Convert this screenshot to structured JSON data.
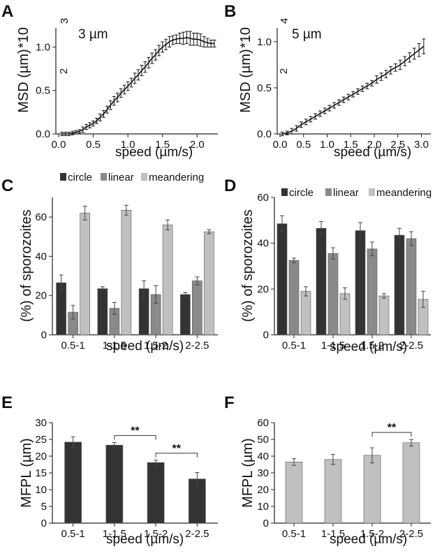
{
  "chart_data": [
    {
      "panel": "A",
      "type": "line",
      "annotation": "3 µm",
      "xlabel": "speed (µm/s)",
      "ylabel": "MSD (µm)",
      "ylabel_sup": "2",
      "ylabel_mult": "*10",
      "ylabel_exp": "3",
      "xlim": [
        0,
        2.3
      ],
      "ylim": [
        0,
        1.22
      ],
      "xticks": [
        "0.0",
        "0.5",
        "1.0",
        "1.5",
        "2.0"
      ],
      "yticks": [
        "0.0",
        "0.5",
        "1.0"
      ],
      "x": [
        0.05,
        0.1,
        0.15,
        0.2,
        0.25,
        0.3,
        0.35,
        0.4,
        0.45,
        0.5,
        0.55,
        0.6,
        0.65,
        0.7,
        0.75,
        0.8,
        0.85,
        0.9,
        0.95,
        1.0,
        1.05,
        1.1,
        1.15,
        1.2,
        1.25,
        1.3,
        1.35,
        1.4,
        1.45,
        1.5,
        1.55,
        1.6,
        1.65,
        1.7,
        1.75,
        1.8,
        1.85,
        1.9,
        1.95,
        2.0,
        2.05,
        2.1,
        2.15,
        2.2,
        2.25
      ],
      "y": [
        0.0,
        0.0,
        0.0,
        0.01,
        0.02,
        0.03,
        0.05,
        0.08,
        0.1,
        0.12,
        0.15,
        0.19,
        0.23,
        0.28,
        0.33,
        0.38,
        0.42,
        0.47,
        0.51,
        0.55,
        0.59,
        0.64,
        0.68,
        0.73,
        0.77,
        0.82,
        0.87,
        0.91,
        0.96,
        1.0,
        1.03,
        1.06,
        1.08,
        1.09,
        1.1,
        1.1,
        1.11,
        1.1,
        1.09,
        1.09,
        1.08,
        1.06,
        1.05,
        1.04,
        1.04
      ],
      "err": [
        0.02,
        0.02,
        0.02,
        0.02,
        0.02,
        0.02,
        0.03,
        0.03,
        0.03,
        0.03,
        0.03,
        0.04,
        0.04,
        0.04,
        0.05,
        0.05,
        0.05,
        0.05,
        0.05,
        0.05,
        0.05,
        0.06,
        0.06,
        0.06,
        0.06,
        0.06,
        0.06,
        0.06,
        0.06,
        0.06,
        0.06,
        0.06,
        0.05,
        0.05,
        0.06,
        0.07,
        0.07,
        0.08,
        0.07,
        0.07,
        0.07,
        0.06,
        0.05,
        0.04,
        0.04
      ]
    },
    {
      "panel": "B",
      "type": "line",
      "annotation": "5 µm",
      "xlabel": "speed (µm/s)",
      "ylabel": "MSD (µm)",
      "ylabel_sup": "2",
      "ylabel_mult": "*10",
      "ylabel_exp": "4",
      "xlim": [
        0,
        3.2
      ],
      "ylim": [
        0,
        1.15
      ],
      "xticks": [
        "0.0",
        "0.5",
        "1.0",
        "1.5",
        "2.0",
        "2.5",
        "3.0"
      ],
      "yticks": [
        "0.0",
        "0.5",
        "1.0"
      ],
      "x": [
        0.05,
        0.15,
        0.25,
        0.35,
        0.45,
        0.55,
        0.65,
        0.75,
        0.85,
        0.95,
        1.05,
        1.15,
        1.25,
        1.35,
        1.45,
        1.55,
        1.65,
        1.75,
        1.85,
        1.95,
        2.05,
        2.15,
        2.25,
        2.35,
        2.45,
        2.55,
        2.65,
        2.75,
        2.85,
        2.95,
        3.05
      ],
      "y": [
        0.0,
        0.01,
        0.03,
        0.06,
        0.1,
        0.13,
        0.16,
        0.19,
        0.22,
        0.25,
        0.28,
        0.31,
        0.34,
        0.37,
        0.4,
        0.43,
        0.46,
        0.49,
        0.52,
        0.55,
        0.59,
        0.62,
        0.65,
        0.69,
        0.72,
        0.75,
        0.79,
        0.83,
        0.87,
        0.91,
        0.95
      ],
      "err": [
        0.02,
        0.02,
        0.03,
        0.03,
        0.03,
        0.03,
        0.03,
        0.03,
        0.03,
        0.03,
        0.03,
        0.03,
        0.03,
        0.03,
        0.03,
        0.03,
        0.03,
        0.03,
        0.03,
        0.03,
        0.04,
        0.04,
        0.04,
        0.04,
        0.04,
        0.05,
        0.05,
        0.05,
        0.06,
        0.07,
        0.08
      ]
    },
    {
      "panel": "C",
      "type": "bar",
      "xlabel": "speed (µm/s)",
      "ylabel": "(%) of sporozoites",
      "ylim": [
        0,
        70
      ],
      "yticks": [
        "0",
        "20",
        "40",
        "60"
      ],
      "categories": [
        "0.5-1",
        "1-1.5",
        "1.5-2",
        "2-2.5"
      ],
      "series": [
        {
          "name": "circle",
          "color": "#333333",
          "values": [
            26.5,
            23.5,
            23.5,
            20.5
          ],
          "err": [
            4,
            1,
            4,
            1
          ]
        },
        {
          "name": "linear",
          "color": "#8a8a8a",
          "values": [
            11.5,
            13.5,
            20.5,
            27.5
          ],
          "err": [
            3.5,
            3,
            4.5,
            2
          ]
        },
        {
          "name": "meandering",
          "color": "#c0c0c0",
          "values": [
            62,
            63.5,
            56,
            52.5
          ],
          "err": [
            3.5,
            2.5,
            2.5,
            1
          ]
        }
      ]
    },
    {
      "panel": "D",
      "type": "bar",
      "xlabel": "speed (µm/s)",
      "ylabel": "(%) of sporozoites",
      "ylim": [
        0,
        60
      ],
      "yticks": [
        "0",
        "20",
        "40",
        "60"
      ],
      "categories": [
        "0.5-1",
        "1-1.5",
        "1.5-2",
        "2-2.5"
      ],
      "series": [
        {
          "name": "circle",
          "color": "#333333",
          "values": [
            48.5,
            46.5,
            45.5,
            43.5
          ],
          "err": [
            3.5,
            3,
            3.5,
            3
          ]
        },
        {
          "name": "linear",
          "color": "#8a8a8a",
          "values": [
            32.5,
            35.5,
            37.5,
            42
          ],
          "err": [
            1,
            2.5,
            3,
            3
          ]
        },
        {
          "name": "meandering",
          "color": "#c0c0c0",
          "values": [
            19,
            18,
            17,
            15.5
          ],
          "err": [
            2,
            2.5,
            1,
            3.5
          ]
        }
      ]
    },
    {
      "panel": "E",
      "type": "bar",
      "xlabel": "speed (µm/s)",
      "ylabel": "MFPL (µm)",
      "ylim": [
        0,
        30
      ],
      "yticks": [
        "0",
        "5",
        "10",
        "15",
        "20",
        "25",
        "30"
      ],
      "categories": [
        "0.5-1",
        "1-1.5",
        "1.5-2",
        "2-2.5"
      ],
      "series": [
        {
          "color": "#333333",
          "values": [
            24.2,
            23.3,
            18.1,
            13.2
          ],
          "err": [
            1.6,
            0.8,
            0.7,
            1.9
          ]
        }
      ],
      "significance": [
        {
          "from": 1,
          "to": 2,
          "label": "**"
        },
        {
          "from": 2,
          "to": 3,
          "label": "**"
        }
      ]
    },
    {
      "panel": "F",
      "type": "bar",
      "xlabel": "speed (µm/s)",
      "ylabel": "MFPL (µm)",
      "ylim": [
        0,
        60
      ],
      "yticks": [
        "0",
        "10",
        "20",
        "30",
        "40",
        "50",
        "60"
      ],
      "categories": [
        "0.5-1",
        "1-1.5",
        "1.5-2",
        "2-2.5"
      ],
      "series": [
        {
          "color": "#c0c0c0",
          "values": [
            36.5,
            38,
            40.5,
            48
          ],
          "err": [
            2,
            3,
            4.5,
            2
          ]
        }
      ],
      "significance": [
        {
          "from": 2,
          "to": 3,
          "label": "**"
        }
      ]
    }
  ]
}
